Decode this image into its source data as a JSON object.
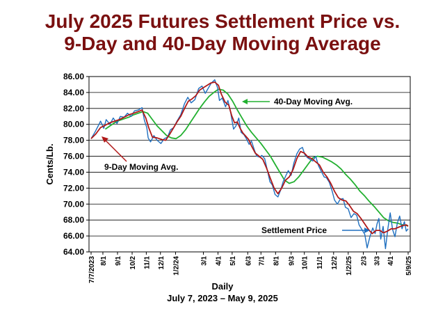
{
  "title_line1": "July 2025 Futures Settlement Price vs.",
  "title_line2": "9-Day and 40-Day Moving Average",
  "colors": {
    "title": "#7a1010",
    "settlement": "#1f6fbf",
    "ma9": "#b01818",
    "ma40": "#22b030",
    "label_arrow_ma40": "#22b030"
  },
  "chart_data": {
    "type": "line",
    "title": "July 2025 Futures Settlement Price vs. 9-Day and 40-Day Moving Average",
    "ylabel": "Cents/Lb.",
    "xlabel": "Daily",
    "subtitle": "July 7, 2023 – May 9, 2025",
    "ylim": [
      64,
      86
    ],
    "yticks": [
      "64.00",
      "66.00",
      "68.00",
      "70.00",
      "72.00",
      "74.00",
      "76.00",
      "78.00",
      "80.00",
      "82.00",
      "84.00",
      "86.00"
    ],
    "grid": "horizontal",
    "x_tick_labels": [
      "7/7/2023",
      "8/1",
      "9/1",
      "10/2",
      "11/1",
      "12/1",
      "1/2/24",
      "3/1",
      "4/1",
      "5/1",
      "6/3",
      "7/1",
      "8/1",
      "9/3",
      "10/1",
      "11/1",
      "12/2",
      "1/2/25",
      "2/3",
      "3/3",
      "4/1",
      "5/9/25"
    ],
    "x_tick_days": [
      0,
      25,
      56,
      87,
      117,
      147,
      179,
      238,
      269,
      299,
      332,
      360,
      391,
      424,
      452,
      483,
      514,
      545,
      577,
      605,
      634,
      672
    ],
    "annotations": [
      "40-Day Moving Avg.",
      "9-Day Moving Avg.",
      "Settlement Price"
    ],
    "series": [
      {
        "name": "Settlement Price",
        "color": "#1f6fbf",
        "x": [
          0,
          8,
          15,
          20,
          27,
          32,
          40,
          47,
          55,
          62,
          70,
          77,
          85,
          92,
          100,
          108,
          113,
          118,
          121,
          126,
          133,
          140,
          148,
          155,
          162,
          168,
          175,
          182,
          190,
          198,
          205,
          212,
          220,
          228,
          235,
          242,
          250,
          255,
          262,
          268,
          272,
          278,
          285,
          290,
          296,
          302,
          307,
          313,
          318,
          324,
          329,
          335,
          340,
          346,
          351,
          357,
          362,
          368,
          373,
          379,
          384,
          390,
          396,
          402,
          407,
          413,
          418,
          424,
          430,
          436,
          442,
          448,
          453,
          459,
          464,
          470,
          476,
          482,
          488,
          494,
          499,
          505,
          511,
          516,
          522,
          528,
          534,
          539,
          545,
          551,
          557,
          563,
          568,
          574,
          580,
          585,
          591,
          597,
          602,
          606,
          610,
          614,
          619,
          624,
          629,
          634,
          639,
          644,
          649,
          654,
          659,
          664,
          668,
          672
        ],
        "y": [
          78.2,
          79.0,
          79.8,
          80.4,
          79.5,
          80.6,
          80.0,
          80.8,
          80.1,
          81.0,
          80.9,
          81.4,
          81.0,
          81.7,
          81.8,
          82.1,
          80.5,
          79.6,
          78.3,
          77.8,
          78.6,
          78.0,
          77.6,
          78.2,
          78.4,
          79.3,
          79.6,
          80.4,
          81.2,
          82.6,
          83.4,
          82.7,
          83.1,
          84.5,
          84.8,
          83.9,
          84.7,
          85.2,
          85.6,
          84.6,
          83.0,
          83.3,
          82.2,
          83.0,
          81.4,
          79.4,
          79.8,
          80.8,
          79.0,
          78.7,
          78.2,
          77.5,
          77.9,
          76.8,
          76.0,
          75.9,
          76.1,
          75.7,
          74.4,
          72.8,
          72.4,
          71.2,
          70.9,
          71.8,
          72.8,
          73.6,
          74.2,
          73.6,
          75.2,
          76.3,
          76.9,
          77.1,
          76.2,
          75.8,
          75.6,
          75.4,
          76.0,
          74.8,
          74.1,
          73.4,
          73.3,
          72.7,
          71.6,
          70.5,
          70.0,
          70.6,
          70.7,
          69.6,
          69.4,
          68.3,
          68.8,
          68.6,
          67.4,
          66.8,
          66.2,
          64.5,
          65.9,
          67.0,
          66.3,
          67.5,
          68.2,
          65.6,
          67.2,
          64.4,
          66.9,
          68.9,
          66.8,
          65.9,
          67.6,
          68.5,
          66.9,
          67.8,
          66.6,
          66.9
        ]
      },
      {
        "name": "9-Day Moving Avg.",
        "color": "#b01818",
        "x": [
          0,
          10,
          20,
          30,
          40,
          50,
          60,
          70,
          80,
          90,
          100,
          108,
          116,
          122,
          130,
          140,
          150,
          158,
          166,
          174,
          182,
          190,
          198,
          206,
          214,
          222,
          230,
          238,
          246,
          254,
          262,
          270,
          276,
          284,
          292,
          298,
          304,
          310,
          316,
          322,
          328,
          334,
          340,
          348,
          356,
          364,
          372,
          380,
          388,
          396,
          404,
          412,
          420,
          428,
          436,
          444,
          452,
          460,
          468,
          476,
          484,
          492,
          500,
          508,
          516,
          524,
          532,
          540,
          548,
          556,
          564,
          572,
          580,
          588,
          596,
          604,
          612,
          620,
          628,
          636,
          644,
          652,
          660,
          668,
          672
        ],
        "y": [
          78.2,
          78.8,
          79.6,
          79.9,
          80.2,
          80.4,
          80.6,
          80.9,
          81.2,
          81.4,
          81.6,
          81.8,
          80.8,
          79.6,
          78.4,
          78.3,
          78.1,
          78.0,
          78.7,
          79.5,
          80.3,
          81.0,
          82.0,
          82.9,
          83.2,
          83.6,
          84.3,
          84.6,
          84.9,
          85.2,
          85.3,
          84.9,
          83.8,
          82.8,
          82.4,
          81.1,
          80.2,
          80.3,
          79.5,
          78.9,
          78.5,
          78.1,
          77.3,
          76.4,
          76.0,
          75.6,
          74.5,
          73.2,
          72.0,
          71.3,
          72.0,
          73.0,
          73.4,
          74.3,
          75.7,
          76.6,
          76.4,
          75.9,
          75.7,
          75.3,
          74.9,
          74.0,
          73.4,
          72.6,
          71.6,
          70.8,
          70.5,
          70.4,
          69.8,
          69.1,
          68.8,
          68.2,
          67.5,
          66.8,
          66.3,
          66.7,
          66.7,
          66.4,
          66.6,
          66.9,
          66.9,
          67.1,
          67.3,
          67.4,
          67.2
        ]
      },
      {
        "name": "40-Day Moving Avg.",
        "color": "#22b030",
        "x": [
          30,
          40,
          50,
          60,
          70,
          80,
          90,
          100,
          110,
          120,
          130,
          140,
          150,
          160,
          170,
          180,
          190,
          200,
          210,
          220,
          230,
          240,
          250,
          260,
          270,
          280,
          290,
          300,
          310,
          320,
          330,
          340,
          350,
          360,
          370,
          380,
          390,
          400,
          410,
          420,
          430,
          440,
          450,
          460,
          470,
          480,
          490,
          500,
          510,
          520,
          530,
          540,
          550,
          560,
          570,
          580,
          590,
          600,
          610,
          620,
          630,
          640,
          650,
          660,
          670,
          672
        ],
        "y": [
          79.4,
          79.8,
          80.2,
          80.5,
          80.7,
          80.9,
          81.2,
          81.4,
          81.6,
          81.4,
          80.6,
          79.8,
          79.2,
          78.6,
          78.3,
          78.2,
          78.6,
          79.3,
          80.2,
          81.1,
          82.0,
          82.8,
          83.5,
          84.0,
          84.4,
          84.3,
          83.8,
          82.9,
          81.8,
          80.8,
          79.8,
          79.0,
          78.3,
          77.6,
          76.8,
          76.0,
          75.0,
          74.0,
          73.0,
          72.6,
          72.8,
          73.4,
          74.2,
          75.0,
          75.8,
          76.0,
          75.9,
          75.6,
          75.3,
          74.9,
          74.4,
          73.7,
          73.1,
          72.4,
          71.6,
          71.0,
          70.3,
          69.7,
          69.0,
          68.3,
          67.9,
          67.7,
          67.6,
          67.4,
          67.3,
          67.3
        ]
      }
    ]
  }
}
